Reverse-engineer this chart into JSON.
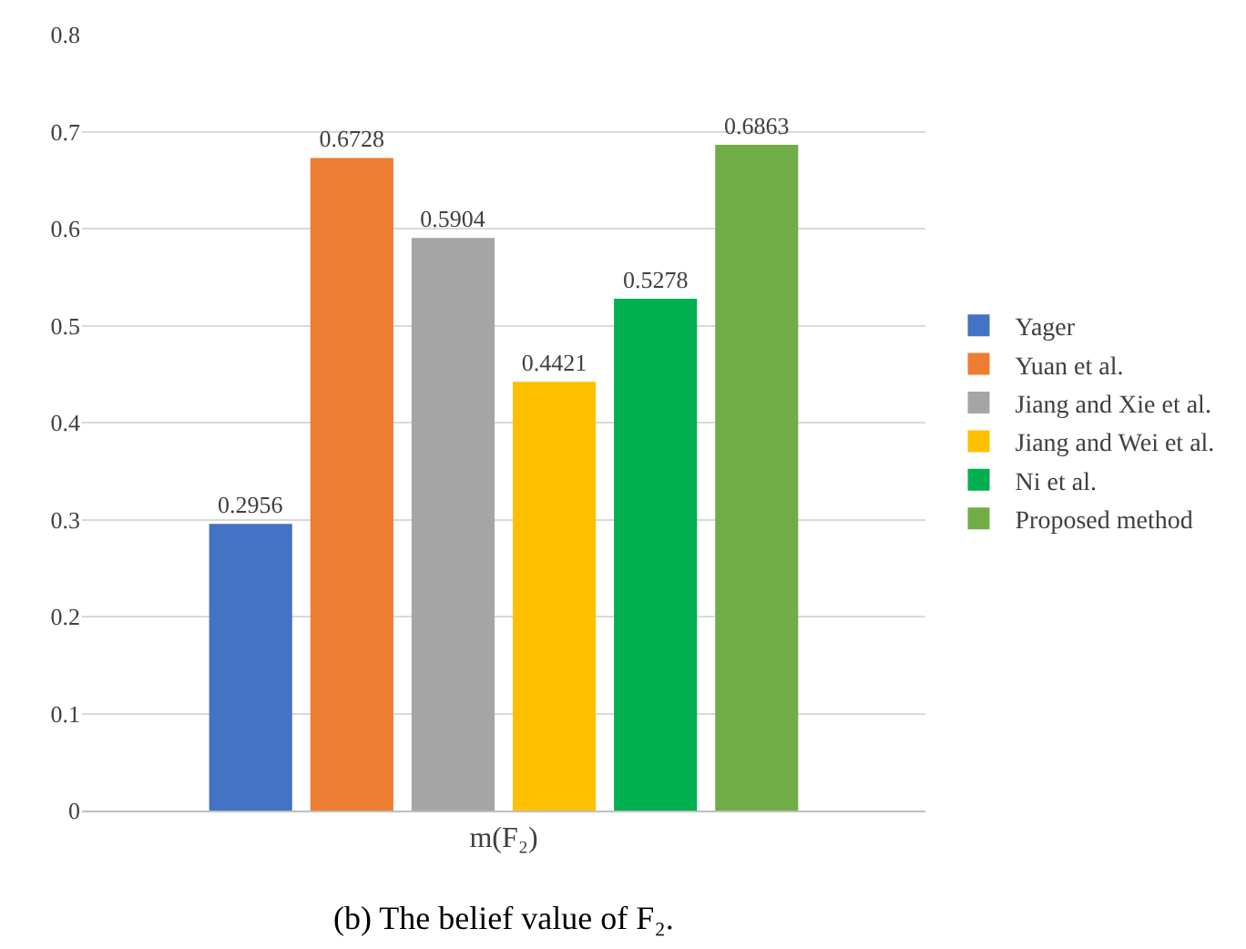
{
  "chart_data": {
    "type": "bar",
    "categories": [
      "m(F₂)"
    ],
    "series": [
      {
        "name": "Yager",
        "color": "#4472c4",
        "values": [
          0.2956
        ]
      },
      {
        "name": "Yuan et al.",
        "color": "#ed7d31",
        "values": [
          0.6728
        ]
      },
      {
        "name": "Jiang and Xie et al.",
        "color": "#a5a5a5",
        "values": [
          0.5904
        ]
      },
      {
        "name": "Jiang and Wei et al.",
        "color": "#ffc000",
        "values": [
          0.4421
        ]
      },
      {
        "name": "Ni et al.",
        "color": "#00b050",
        "values": [
          0.5278
        ]
      },
      {
        "name": "Proposed method",
        "color": "#70ad47",
        "values": [
          0.6863
        ]
      }
    ],
    "ylim": [
      0,
      0.8
    ],
    "yticks": [
      0,
      0.1,
      0.2,
      0.3,
      0.4,
      0.5,
      0.6,
      0.7,
      0.8
    ],
    "grid": "y",
    "legend": "right",
    "data_labels": true,
    "annotations": [
      "(b) The belief value of F₂."
    ]
  }
}
